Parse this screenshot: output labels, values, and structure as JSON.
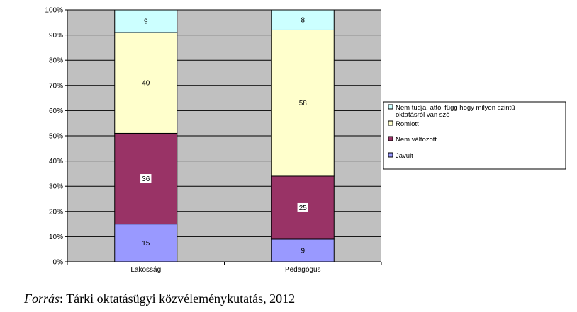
{
  "chart_data": {
    "type": "bar",
    "stacked": true,
    "percent_stacked": true,
    "categories": [
      "Lakosság",
      "Pedagógus"
    ],
    "series": [
      {
        "name": "Javult",
        "values": [
          15,
          9
        ],
        "color": "#9999ff"
      },
      {
        "name": "Nem változott",
        "values": [
          36,
          25
        ],
        "color": "#993366"
      },
      {
        "name": "Romlott",
        "values": [
          40,
          58
        ],
        "color": "#ffffcc"
      },
      {
        "name": "Nem tudja, attól függ hogy milyen szintű oktatásról van szó",
        "values": [
          9,
          8
        ],
        "color": "#ccffff"
      }
    ],
    "legend_order": [
      3,
      2,
      1,
      0
    ],
    "yticks": [
      "0%",
      "10%",
      "20%",
      "30%",
      "40%",
      "50%",
      "60%",
      "70%",
      "80%",
      "90%",
      "100%"
    ],
    "ylim": [
      0,
      100
    ],
    "plot_background": "#c0c0c0",
    "grid": true,
    "legend_position": "right"
  },
  "source": {
    "label": "Forrás",
    "text": ": Tárki oktatásügyi közvéleménykutatás, 2012"
  }
}
